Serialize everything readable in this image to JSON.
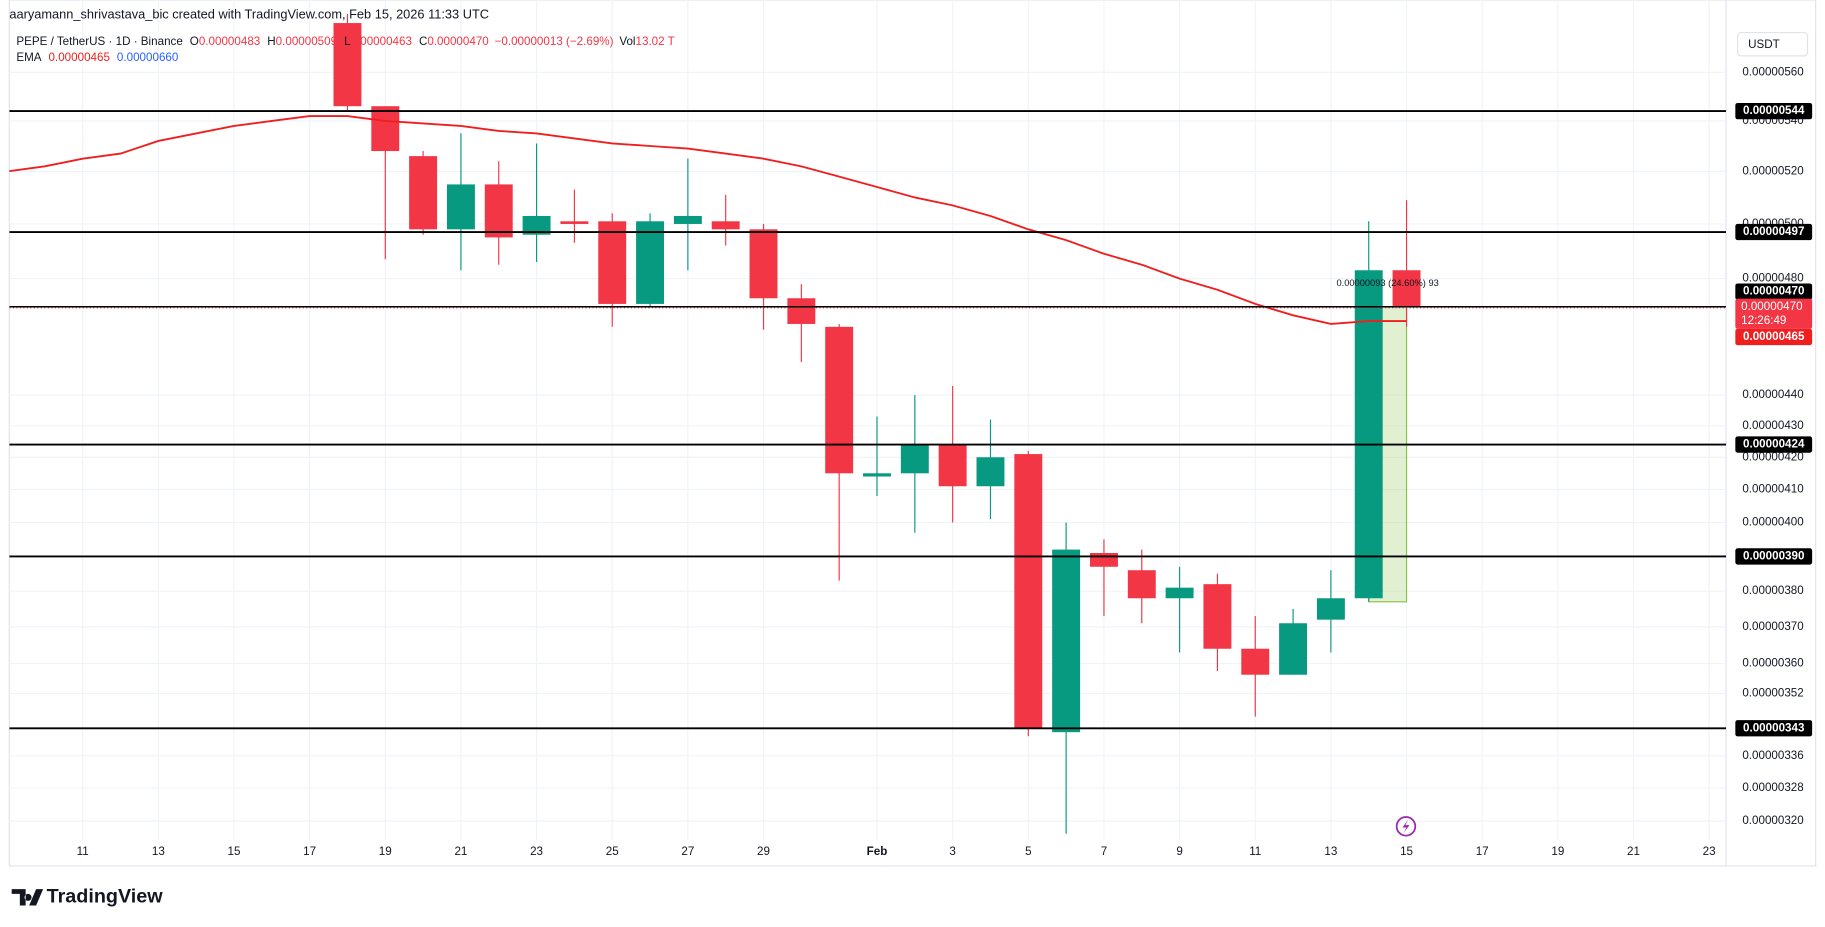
{
  "header": {
    "attribution": "aaryamann_shrivastava_bic created with TradingView.com, Feb 15, 2026 11:33 UTC"
  },
  "chart_data": {
    "type": "candlestick",
    "symbol": "PEPE / TetherUS · 1D · Binance",
    "ohlc_legend": [
      {
        "label": "O",
        "value": "0.00000483"
      },
      {
        "label": "H",
        "value": "0.00000509"
      },
      {
        "label": "L",
        "value": "0.00000463"
      },
      {
        "label": "C",
        "value": "0.00000470"
      }
    ],
    "change": "−0.00000013 (−2.69%)",
    "volume": {
      "label": "Vol",
      "value": "13.02 T"
    },
    "ema_legend": {
      "label": "EMA",
      "values": [
        "0.00000465",
        "0.00000660"
      ]
    },
    "currency": "USDT",
    "up_color": "#089981",
    "down_color": "#f23645",
    "log": true,
    "grid": true,
    "x": [
      "2026-01-09",
      "2026-01-10",
      "2026-01-11",
      "2026-01-12",
      "2026-01-13",
      "2026-01-14",
      "2026-01-15",
      "2026-01-16",
      "2026-01-17",
      "2026-01-18",
      "2026-01-19",
      "2026-01-20",
      "2026-01-21",
      "2026-01-22",
      "2026-01-23",
      "2026-01-24",
      "2026-01-25",
      "2026-01-26",
      "2026-01-27",
      "2026-01-28",
      "2026-01-29",
      "2026-01-30",
      "2026-01-31",
      "2026-02-01",
      "2026-02-02",
      "2026-02-03",
      "2026-02-04",
      "2026-02-05",
      "2026-02-06",
      "2026-02-07",
      "2026-02-08",
      "2026-02-09",
      "2026-02-10",
      "2026-02-11",
      "2026-02-12",
      "2026-02-13",
      "2026-02-14",
      "2026-02-15"
    ],
    "open": [
      null,
      null,
      null,
      null,
      null,
      null,
      null,
      null,
      null,
      5.81e-06,
      5.46e-06,
      5.26e-06,
      4.98e-06,
      5.15e-06,
      4.96e-06,
      5.01e-06,
      5.01e-06,
      4.71e-06,
      5e-06,
      5.01e-06,
      4.98e-06,
      4.73e-06,
      4.63e-06,
      4.14e-06,
      4.15e-06,
      4.24e-06,
      4.11e-06,
      4.21e-06,
      3.42e-06,
      3.91e-06,
      3.86e-06,
      3.78e-06,
      3.82e-06,
      3.64e-06,
      3.57e-06,
      3.72e-06,
      3.78e-06,
      4.83e-06
    ],
    "high": [
      null,
      null,
      null,
      null,
      null,
      null,
      null,
      null,
      null,
      5.85e-06,
      5.46e-06,
      5.28e-06,
      5.35e-06,
      5.24e-06,
      5.31e-06,
      5.13e-06,
      5.04e-06,
      5.04e-06,
      5.25e-06,
      5.11e-06,
      5e-06,
      4.78e-06,
      4.64e-06,
      4.33e-06,
      4.4e-06,
      4.43e-06,
      4.32e-06,
      4.22e-06,
      4e-06,
      3.95e-06,
      3.92e-06,
      3.87e-06,
      3.85e-06,
      3.73e-06,
      3.75e-06,
      3.86e-06,
      5.01e-06,
      5.09e-06
    ],
    "low": [
      null,
      null,
      null,
      null,
      null,
      null,
      null,
      null,
      null,
      5.44e-06,
      4.87e-06,
      4.96e-06,
      4.83e-06,
      4.85e-06,
      4.86e-06,
      4.93e-06,
      4.63e-06,
      4.7e-06,
      4.83e-06,
      4.92e-06,
      4.62e-06,
      4.51e-06,
      3.83e-06,
      4.08e-06,
      3.97e-06,
      4e-06,
      4.01e-06,
      3.41e-06,
      3.17e-06,
      3.73e-06,
      3.71e-06,
      3.63e-06,
      3.58e-06,
      3.46e-06,
      3.57e-06,
      3.63e-06,
      3.77e-06,
      4.63e-06
    ],
    "close": [
      null,
      null,
      null,
      null,
      null,
      null,
      null,
      null,
      null,
      5.46e-06,
      5.28e-06,
      4.98e-06,
      5.15e-06,
      4.95e-06,
      5.03e-06,
      5e-06,
      4.71e-06,
      5.01e-06,
      5.03e-06,
      4.98e-06,
      4.73e-06,
      4.64e-06,
      4.15e-06,
      4.15e-06,
      4.24e-06,
      4.11e-06,
      4.2e-06,
      3.43e-06,
      3.92e-06,
      3.87e-06,
      3.78e-06,
      3.81e-06,
      3.64e-06,
      3.57e-06,
      3.71e-06,
      3.78e-06,
      4.83e-06,
      4.7e-06
    ],
    "ema": {
      "name": "EMA",
      "color": "#f01f1f",
      "values": [
        5.2e-06,
        5.22e-06,
        5.25e-06,
        5.27e-06,
        5.32e-06,
        5.35e-06,
        5.38e-06,
        5.4e-06,
        5.42e-06,
        5.42e-06,
        5.4e-06,
        5.39e-06,
        5.38e-06,
        5.36e-06,
        5.35e-06,
        5.33e-06,
        5.31e-06,
        5.3e-06,
        5.29e-06,
        5.27e-06,
        5.25e-06,
        5.22e-06,
        5.18e-06,
        5.14e-06,
        5.1e-06,
        5.07e-06,
        5.03e-06,
        4.98e-06,
        4.94e-06,
        4.89e-06,
        4.85e-06,
        4.8e-06,
        4.76e-06,
        4.71e-06,
        4.67e-06,
        4.64e-06,
        4.65e-06,
        4.65e-06
      ]
    },
    "levels": [
      {
        "value": 5.44e-06,
        "label": "0.00000544"
      },
      {
        "value": 4.97e-06,
        "label": "0.00000497"
      },
      {
        "value": 4.24e-06,
        "label": "0.00000424"
      },
      {
        "value": 3.9e-06,
        "label": "0.00000390"
      },
      {
        "value": 3.43e-06,
        "label": "0.00000343"
      }
    ],
    "top_label": {
      "value": 4.7e-06,
      "label": "0.00000470"
    },
    "last_price": {
      "value": 4.7e-06,
      "label": "0.00000470",
      "countdown": "12:26:49"
    },
    "ema_last": {
      "value": 4.65e-06,
      "label": "0.00000465"
    },
    "measure": {
      "label": "0.00000093 (24.60%) 93",
      "from": 3.77e-06,
      "to": 4.7e-06,
      "x": [
        "2026-02-14",
        "2026-02-15"
      ]
    },
    "ylim": [
      3.16e-06,
      5.87e-06
    ],
    "yticks": [
      {
        "value": 5.6e-06,
        "label": "0.00000560"
      },
      {
        "value": 5.4e-06,
        "label": "0.00000540"
      },
      {
        "value": 5.2e-06,
        "label": "0.00000520"
      },
      {
        "value": 5e-06,
        "label": "0.00000500"
      },
      {
        "value": 4.8e-06,
        "label": "0.00000480"
      },
      {
        "value": 4.4e-06,
        "label": "0.00000440"
      },
      {
        "value": 4.3e-06,
        "label": "0.00000430"
      },
      {
        "value": 4.2e-06,
        "label": "0.00000420"
      },
      {
        "value": 4.1e-06,
        "label": "0.00000410"
      },
      {
        "value": 4e-06,
        "label": "0.00000400"
      },
      {
        "value": 3.8e-06,
        "label": "0.00000380"
      },
      {
        "value": 3.7e-06,
        "label": "0.00000370"
      },
      {
        "value": 3.6e-06,
        "label": "0.00000360"
      },
      {
        "value": 3.52e-06,
        "label": "0.00000352"
      },
      {
        "value": 3.36e-06,
        "label": "0.00000336"
      },
      {
        "value": 3.28e-06,
        "label": "0.00000328"
      },
      {
        "value": 3.2e-06,
        "label": "0.00000320"
      }
    ],
    "xticks": [
      {
        "value": "2026-01-11",
        "label": "11"
      },
      {
        "value": "2026-01-13",
        "label": "13"
      },
      {
        "value": "2026-01-15",
        "label": "15"
      },
      {
        "value": "2026-01-17",
        "label": "17"
      },
      {
        "value": "2026-01-19",
        "label": "19"
      },
      {
        "value": "2026-01-21",
        "label": "21"
      },
      {
        "value": "2026-01-23",
        "label": "23"
      },
      {
        "value": "2026-01-25",
        "label": "25"
      },
      {
        "value": "2026-01-27",
        "label": "27"
      },
      {
        "value": "2026-01-29",
        "label": "29"
      },
      {
        "value": "2026-02-01",
        "label": "Feb"
      },
      {
        "value": "2026-02-03",
        "label": "3"
      },
      {
        "value": "2026-02-05",
        "label": "5"
      },
      {
        "value": "2026-02-07",
        "label": "7"
      },
      {
        "value": "2026-02-09",
        "label": "9"
      },
      {
        "value": "2026-02-11",
        "label": "11"
      },
      {
        "value": "2026-02-13",
        "label": "13"
      },
      {
        "value": "2026-02-15",
        "label": "15"
      },
      {
        "value": "2026-02-17",
        "label": "17"
      },
      {
        "value": "2026-02-19",
        "label": "19"
      },
      {
        "value": "2026-02-21",
        "label": "21"
      },
      {
        "value": "2026-02-23",
        "label": "23"
      }
    ]
  },
  "footer": {
    "brand": "TradingView"
  }
}
